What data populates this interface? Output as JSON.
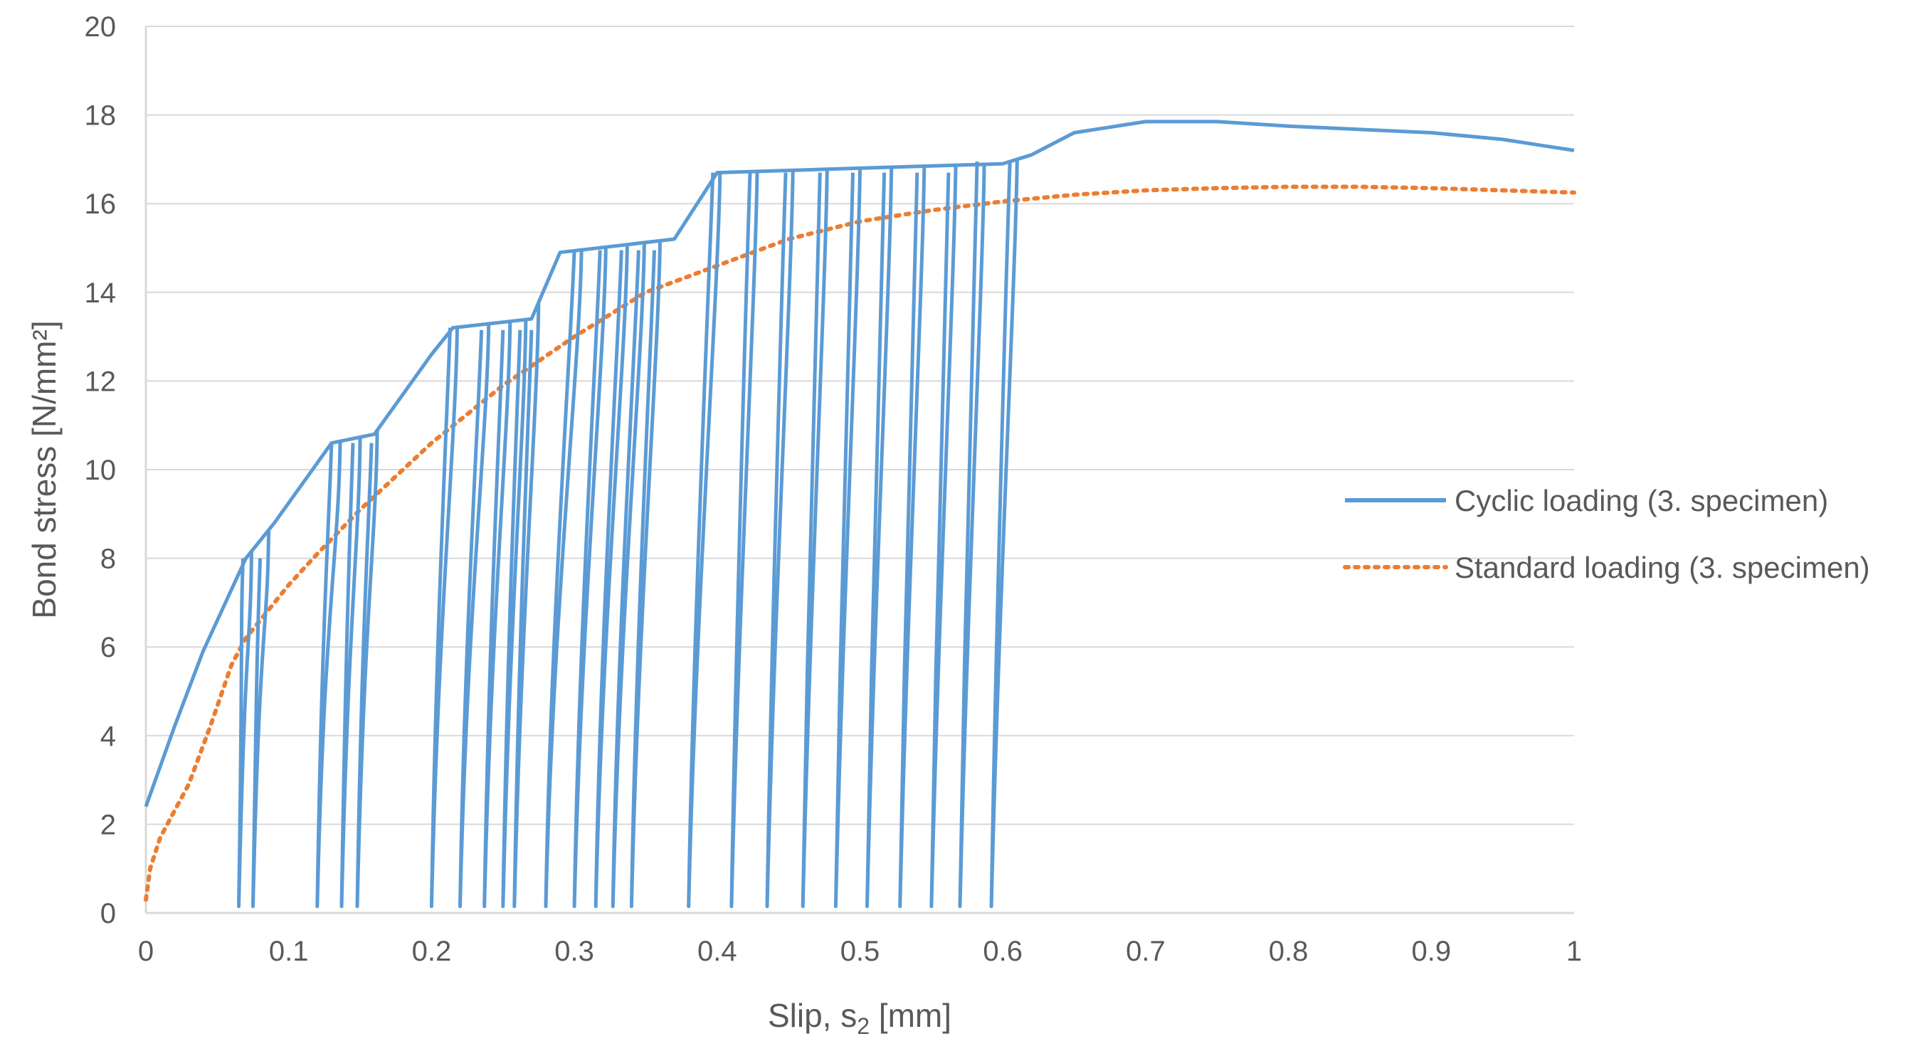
{
  "chart_data": {
    "type": "line",
    "title": "",
    "xlabel": "Slip, s",
    "xlabel_subscript": "2",
    "xlabel_unit": " [mm]",
    "ylabel": "Bond stress [N/mm²]",
    "xlim": [
      0,
      1
    ],
    "ylim": [
      0,
      20
    ],
    "xticks": [
      "0",
      "0.1",
      "0.2",
      "0.3",
      "0.4",
      "0.5",
      "0.6",
      "0.7",
      "0.8",
      "0.9",
      "1"
    ],
    "yticks": [
      "0",
      "2",
      "4",
      "6",
      "8",
      "10",
      "12",
      "14",
      "16",
      "18",
      "20"
    ],
    "grid": "horizontal",
    "legend_position": "right",
    "series": [
      {
        "name": "Cyclic loading (3. specimen)",
        "color": "#5b9bd5",
        "style": "solid",
        "envelope": [
          [
            0,
            2.4
          ],
          [
            0.02,
            4.2
          ],
          [
            0.04,
            5.9
          ],
          [
            0.07,
            8.0
          ],
          [
            0.09,
            8.8
          ],
          [
            0.13,
            10.6
          ],
          [
            0.16,
            10.8
          ],
          [
            0.2,
            12.6
          ],
          [
            0.215,
            13.2
          ],
          [
            0.27,
            13.4
          ],
          [
            0.29,
            14.9
          ],
          [
            0.37,
            15.2
          ],
          [
            0.4,
            16.7
          ],
          [
            0.6,
            16.9
          ],
          [
            0.62,
            17.1
          ],
          [
            0.65,
            17.6
          ],
          [
            0.7,
            17.85
          ],
          [
            0.75,
            17.85
          ],
          [
            0.8,
            17.75
          ],
          [
            0.9,
            17.6
          ],
          [
            0.95,
            17.45
          ],
          [
            1.0,
            17.2
          ]
        ],
        "cycles": [
          {
            "peak_x": 0.068,
            "peak_y": 8.0,
            "min_x": 0.065,
            "return_x": 0.074
          },
          {
            "peak_x": 0.08,
            "peak_y": 8.0,
            "min_x": 0.075,
            "return_x": 0.086
          },
          {
            "peak_x": 0.13,
            "peak_y": 10.6,
            "min_x": 0.12,
            "return_x": 0.136
          },
          {
            "peak_x": 0.145,
            "peak_y": 10.6,
            "min_x": 0.137,
            "return_x": 0.15
          },
          {
            "peak_x": 0.158,
            "peak_y": 10.6,
            "min_x": 0.148,
            "return_x": 0.162
          },
          {
            "peak_x": 0.213,
            "peak_y": 13.2,
            "min_x": 0.2,
            "return_x": 0.218
          },
          {
            "peak_x": 0.235,
            "peak_y": 13.15,
            "min_x": 0.22,
            "return_x": 0.24
          },
          {
            "peak_x": 0.25,
            "peak_y": 13.15,
            "min_x": 0.237,
            "return_x": 0.255
          },
          {
            "peak_x": 0.262,
            "peak_y": 13.15,
            "min_x": 0.25,
            "return_x": 0.266
          },
          {
            "peak_x": 0.27,
            "peak_y": 13.15,
            "min_x": 0.258,
            "return_x": 0.275
          },
          {
            "peak_x": 0.3,
            "peak_y": 14.95,
            "min_x": 0.28,
            "return_x": 0.305
          },
          {
            "peak_x": 0.318,
            "peak_y": 14.95,
            "min_x": 0.3,
            "return_x": 0.322
          },
          {
            "peak_x": 0.333,
            "peak_y": 14.95,
            "min_x": 0.315,
            "return_x": 0.337
          },
          {
            "peak_x": 0.345,
            "peak_y": 14.95,
            "min_x": 0.327,
            "return_x": 0.349
          },
          {
            "peak_x": 0.356,
            "peak_y": 14.95,
            "min_x": 0.34,
            "return_x": 0.36
          },
          {
            "peak_x": 0.397,
            "peak_y": 16.7,
            "min_x": 0.38,
            "return_x": 0.402
          },
          {
            "peak_x": 0.423,
            "peak_y": 16.7,
            "min_x": 0.41,
            "return_x": 0.428
          },
          {
            "peak_x": 0.448,
            "peak_y": 16.7,
            "min_x": 0.435,
            "return_x": 0.453
          },
          {
            "peak_x": 0.472,
            "peak_y": 16.7,
            "min_x": 0.46,
            "return_x": 0.477
          },
          {
            "peak_x": 0.495,
            "peak_y": 16.7,
            "min_x": 0.483,
            "return_x": 0.5
          },
          {
            "peak_x": 0.517,
            "peak_y": 16.7,
            "min_x": 0.505,
            "return_x": 0.522
          },
          {
            "peak_x": 0.54,
            "peak_y": 16.7,
            "min_x": 0.528,
            "return_x": 0.545
          },
          {
            "peak_x": 0.562,
            "peak_y": 16.7,
            "min_x": 0.55,
            "return_x": 0.567
          },
          {
            "peak_x": 0.582,
            "peak_y": 16.95,
            "min_x": 0.57,
            "return_x": 0.587
          },
          {
            "peak_x": 0.605,
            "peak_y": 16.95,
            "min_x": 0.592,
            "return_x": 0.61
          }
        ]
      },
      {
        "name": "Standard loading (3. specimen)",
        "color": "#ed7d31",
        "style": "dotted",
        "x": [
          0,
          0.003,
          0.01,
          0.02,
          0.03,
          0.045,
          0.06,
          0.07,
          0.08,
          0.1,
          0.12,
          0.15,
          0.18,
          0.2,
          0.25,
          0.3,
          0.35,
          0.4,
          0.45,
          0.5,
          0.55,
          0.6,
          0.65,
          0.7,
          0.75,
          0.8,
          0.85,
          0.9,
          0.95,
          1.0
        ],
        "y": [
          0.3,
          1.0,
          1.7,
          2.3,
          2.9,
          4.2,
          5.6,
          6.2,
          6.6,
          7.4,
          8.1,
          9.1,
          10.0,
          10.6,
          11.9,
          13.0,
          14.0,
          14.6,
          15.2,
          15.6,
          15.85,
          16.05,
          16.2,
          16.3,
          16.35,
          16.38,
          16.38,
          16.35,
          16.3,
          16.25
        ]
      }
    ]
  }
}
